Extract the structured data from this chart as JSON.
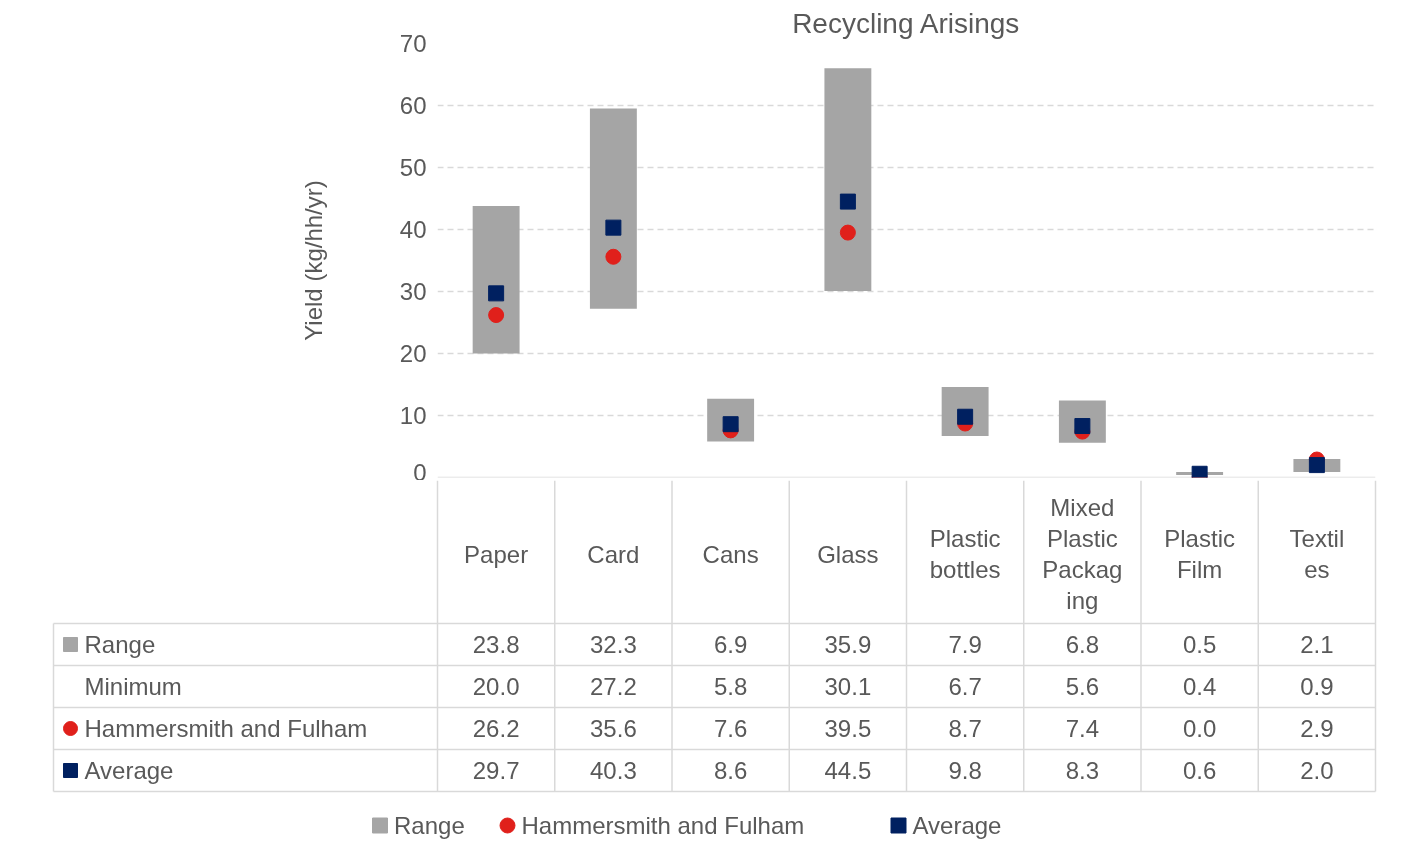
{
  "chart_data": {
    "type": "bar",
    "title": "Recycling Arisings",
    "ylabel": "Yield (kg/hh/yr)",
    "categories": [
      "Paper",
      "Card",
      "Cans",
      "Glass",
      "Plastic bottles",
      "Mixed Plastic Packaging",
      "Plastic Film",
      "Textiles"
    ],
    "annotations": [
      "Minimum",
      "20.0",
      "27.2",
      "5.8",
      "30.1",
      "6.7",
      "5.6",
      "0.4",
      "0.9"
    ],
    "series": [
      {
        "name": "Range",
        "color": "#a5a5a5",
        "values": [
          23.8,
          32.3,
          6.9,
          35.9,
          7.9,
          6.8,
          0.5,
          2.1
        ],
        "base": [
          20.0,
          27.2,
          5.8,
          30.1,
          6.7,
          5.6,
          0.4,
          0.9
        ],
        "value_labels": [
          "23.8",
          "32.3",
          "6.9",
          "35.9",
          "7.9",
          "6.8",
          "0.5",
          "2.1"
        ]
      },
      {
        "name": "Hammersmith and Fulham",
        "type": "scatter",
        "marker": "circle",
        "color": "#e0201b",
        "values": [
          26.2,
          35.6,
          7.6,
          39.5,
          8.7,
          7.4,
          0.0,
          2.9
        ],
        "value_labels": [
          "26.2",
          "35.6",
          "7.6",
          "39.5",
          "8.7",
          "7.4",
          "0.0",
          "2.9"
        ]
      },
      {
        "name": "Average",
        "type": "scatter",
        "marker": "square",
        "color": "#002060",
        "values": [
          29.7,
          40.3,
          8.6,
          44.5,
          9.8,
          8.3,
          0.6,
          2.0
        ],
        "value_labels": [
          "29.7",
          "40.3",
          "8.6",
          "44.5",
          "9.8",
          "8.3",
          "0.6",
          "2.0"
        ]
      }
    ],
    "ylim": [
      0,
      70
    ],
    "yticks": [
      0,
      10,
      20,
      30,
      40,
      50,
      60,
      70
    ],
    "grid": "y",
    "legend": "bottom"
  }
}
